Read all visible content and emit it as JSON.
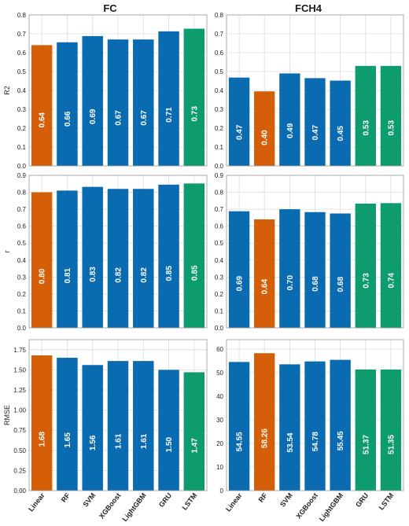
{
  "colors": {
    "blue": "#0a6bb0",
    "orange": "#d45f08",
    "green": "#0e9b6e",
    "grid": "#dcdcdc",
    "axis": "#9a9a9a"
  },
  "columns": [
    "FC",
    "FCH4"
  ],
  "categories": [
    "Linear",
    "RF",
    "SVM",
    "XGBoost",
    "LightGBM",
    "GRU",
    "LSTM"
  ],
  "chart_data": [
    {
      "type": "bar",
      "title": "FC",
      "ylabel": "R2",
      "ylim": [
        0,
        0.8
      ],
      "yticks": [
        "0.0",
        "0.1",
        "0.2",
        "0.3",
        "0.4",
        "0.5",
        "0.6",
        "0.7",
        "0.8"
      ],
      "categories": [
        "Linear",
        "RF",
        "SVM",
        "XGBoost",
        "LightGBM",
        "GRU",
        "LSTM"
      ],
      "values": [
        0.64,
        0.655,
        0.688,
        0.67,
        0.67,
        0.713,
        0.727
      ],
      "labels": [
        "0.64",
        "0.66",
        "0.69",
        "0.67",
        "0.67",
        "0.71",
        "0.73"
      ],
      "colors": [
        "orange",
        "blue",
        "blue",
        "blue",
        "blue",
        "blue",
        "green"
      ]
    },
    {
      "type": "bar",
      "title": "FCH4",
      "ylabel": "",
      "ylim": [
        0,
        0.8
      ],
      "yticks": [
        "0.0",
        "0.1",
        "0.2",
        "0.3",
        "0.4",
        "0.5",
        "0.6",
        "0.7",
        "0.8"
      ],
      "categories": [
        "Linear",
        "RF",
        "SVM",
        "XGBoost",
        "LightGBM",
        "GRU",
        "LSTM"
      ],
      "values": [
        0.468,
        0.395,
        0.49,
        0.465,
        0.452,
        0.53,
        0.53
      ],
      "labels": [
        "0.47",
        "0.40",
        "0.49",
        "0.47",
        "0.45",
        "0.53",
        "0.53"
      ],
      "colors": [
        "blue",
        "orange",
        "blue",
        "blue",
        "blue",
        "green",
        "green"
      ]
    },
    {
      "type": "bar",
      "title": "",
      "ylabel": "r",
      "ylim": [
        0,
        0.9
      ],
      "yticks": [
        "0.0",
        "0.1",
        "0.2",
        "0.3",
        "0.4",
        "0.5",
        "0.6",
        "0.7",
        "0.8",
        "0.9"
      ],
      "categories": [
        "Linear",
        "RF",
        "SVM",
        "XGBoost",
        "LightGBM",
        "GRU",
        "LSTM"
      ],
      "values": [
        0.8,
        0.81,
        0.832,
        0.82,
        0.82,
        0.845,
        0.852
      ],
      "labels": [
        "0.80",
        "0.81",
        "0.83",
        "0.82",
        "0.82",
        "0.85",
        "0.85"
      ],
      "colors": [
        "orange",
        "blue",
        "blue",
        "blue",
        "blue",
        "blue",
        "green"
      ]
    },
    {
      "type": "bar",
      "title": "",
      "ylabel": "",
      "ylim": [
        0,
        0.9
      ],
      "yticks": [
        "0.0",
        "0.1",
        "0.2",
        "0.3",
        "0.4",
        "0.5",
        "0.6",
        "0.7",
        "0.8",
        "0.9"
      ],
      "categories": [
        "Linear",
        "RF",
        "SVM",
        "XGBoost",
        "LightGBM",
        "GRU",
        "LSTM"
      ],
      "values": [
        0.688,
        0.64,
        0.7,
        0.683,
        0.675,
        0.733,
        0.736
      ],
      "labels": [
        "0.69",
        "0.64",
        "0.70",
        "0.68",
        "0.68",
        "0.73",
        "0.74"
      ],
      "colors": [
        "blue",
        "orange",
        "blue",
        "blue",
        "blue",
        "green",
        "green"
      ]
    },
    {
      "type": "bar",
      "title": "",
      "ylabel": "RMSE",
      "ylim": [
        0,
        1.875
      ],
      "yticks": [
        "0.00",
        "0.25",
        "0.50",
        "0.75",
        "1.00",
        "1.25",
        "1.50",
        "1.75"
      ],
      "yticksValues": [
        0,
        0.25,
        0.5,
        0.75,
        1.0,
        1.25,
        1.5,
        1.75
      ],
      "categories": [
        "Linear",
        "RF",
        "SVM",
        "XGBoost",
        "LightGBM",
        "GRU",
        "LSTM"
      ],
      "values": [
        1.68,
        1.65,
        1.56,
        1.61,
        1.61,
        1.5,
        1.47
      ],
      "labels": [
        "1.68",
        "1.65",
        "1.56",
        "1.61",
        "1.61",
        "1.50",
        "1.47"
      ],
      "colors": [
        "orange",
        "blue",
        "blue",
        "blue",
        "blue",
        "blue",
        "green"
      ]
    },
    {
      "type": "bar",
      "title": "",
      "ylabel": "",
      "ylim": [
        0,
        64
      ],
      "yticks": [
        "0",
        "10",
        "20",
        "30",
        "40",
        "50",
        "60"
      ],
      "yticksValues": [
        0,
        10,
        20,
        30,
        40,
        50,
        60
      ],
      "categories": [
        "Linear",
        "RF",
        "SVM",
        "XGBoost",
        "LightGBM",
        "GRU",
        "LSTM"
      ],
      "values": [
        54.55,
        58.26,
        53.54,
        54.78,
        55.45,
        51.37,
        51.35
      ],
      "labels": [
        "54.55",
        "58.26",
        "53.54",
        "54.78",
        "55.45",
        "51.37",
        "51.35"
      ],
      "colors": [
        "blue",
        "orange",
        "blue",
        "blue",
        "blue",
        "green",
        "green"
      ]
    }
  ]
}
